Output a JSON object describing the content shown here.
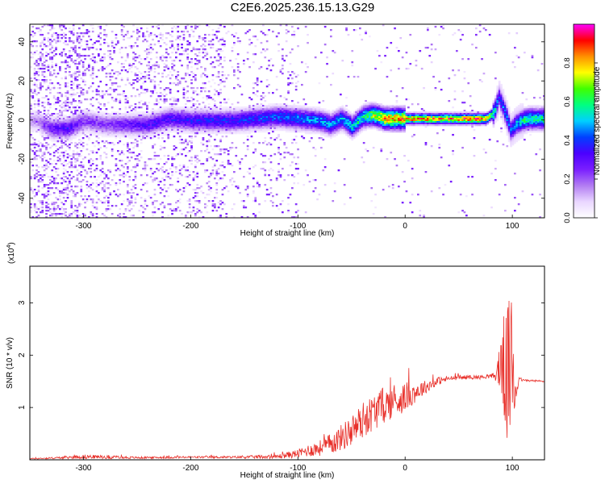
{
  "figure": {
    "title": "C2E6.2025.236.15.13.G29"
  },
  "colors": {
    "background": "#ffffff",
    "frame": "#000000",
    "snr_line": "#e8302a",
    "colormap": [
      "#ffffff",
      "#e9d6ff",
      "#b27cf2",
      "#7a1fff",
      "#4b00ff",
      "#0040ff",
      "#00d0ff",
      "#00ff80",
      "#40ff00",
      "#ffff00",
      "#ff9000",
      "#ff0000",
      "#ff00ff"
    ]
  },
  "chart_data": [
    {
      "type": "heatmap",
      "title": "C2E6.2025.236.15.13.G29",
      "xlabel": "Height of straight line (km)",
      "ylabel": "Frequency (Hz)",
      "xlim": [
        -350,
        130
      ],
      "ylim": [
        -50,
        49
      ],
      "x_ticks": [
        -300,
        -200,
        -100,
        0,
        100
      ],
      "x_tick_labels": [
        "-300",
        "-200",
        "-100",
        "0",
        "100"
      ],
      "y_ticks": [
        -40,
        -20,
        0,
        20,
        40
      ],
      "y_tick_labels": [
        "-40",
        "-20",
        "0",
        "20",
        "40"
      ],
      "colorbar": {
        "label": "Normalized spectral amplitude",
        "range": [
          0,
          1
        ],
        "ticks": [
          0.0,
          0.2,
          0.4,
          0.6,
          0.8
        ],
        "tick_labels": [
          "0.0",
          "0.2",
          "0.4",
          "0.6",
          "0.8"
        ]
      },
      "colormap": "rainbow (white-purple-blue-cyan-green-yellow-red-magenta)",
      "ridge": {
        "x": [
          -345,
          -330,
          -315,
          -300,
          -280,
          -260,
          -240,
          -220,
          -200,
          -180,
          -160,
          -140,
          -120,
          -100,
          -80,
          -70,
          -60,
          -50,
          -40,
          -30,
          -20,
          0,
          20,
          40,
          60,
          75,
          82,
          87,
          90,
          94,
          98,
          102,
          108,
          115,
          125,
          130
        ],
        "y": [
          0,
          -4,
          -4,
          0,
          -2,
          -2,
          -2,
          1,
          0,
          0,
          0,
          1,
          2,
          1,
          0,
          -2,
          1,
          -3,
          2,
          3,
          1,
          1,
          1,
          1,
          1,
          1,
          4,
          12,
          8,
          2,
          -5,
          -2,
          0,
          1,
          1,
          1
        ],
        "amplitude": [
          0.15,
          0.3,
          0.35,
          0.25,
          0.25,
          0.3,
          0.35,
          0.35,
          0.38,
          0.4,
          0.4,
          0.42,
          0.45,
          0.48,
          0.5,
          0.5,
          0.5,
          0.55,
          0.6,
          0.75,
          0.85,
          0.9,
          0.88,
          0.9,
          0.92,
          0.88,
          0.6,
          0.4,
          0.45,
          0.5,
          0.45,
          0.5,
          0.6,
          0.6,
          0.6,
          0.6
        ]
      },
      "grid": false
    },
    {
      "type": "line",
      "xlabel": "Height of straight line (km)",
      "ylabel": "SNR (10 * v/v)",
      "y_multiplier": "(x10^4)",
      "xlim": [
        -350,
        130
      ],
      "ylim": [
        0,
        3.7
      ],
      "x_ticks": [
        -300,
        -200,
        -100,
        0,
        100
      ],
      "x_tick_labels": [
        "-300",
        "-200",
        "-100",
        "0",
        "100"
      ],
      "y_ticks": [
        1,
        2,
        3
      ],
      "y_tick_labels": [
        "1",
        "2",
        "3"
      ],
      "series": [
        {
          "x": [
            -350,
            -320,
            -300,
            -250,
            -200,
            -160,
            -120,
            -100,
            -90,
            -80,
            -70,
            -60,
            -50,
            -40,
            -30,
            -20,
            -10,
            0,
            10,
            20,
            30,
            40,
            50,
            60,
            70,
            80,
            85,
            90,
            95,
            100,
            103,
            106,
            110,
            120,
            130
          ],
          "y": [
            0.02,
            0.04,
            0.06,
            0.04,
            0.05,
            0.05,
            0.06,
            0.12,
            0.18,
            0.22,
            0.3,
            0.42,
            0.55,
            0.75,
            0.9,
            1.05,
            1.1,
            1.2,
            1.3,
            1.4,
            1.5,
            1.55,
            1.57,
            1.58,
            1.58,
            1.6,
            1.6,
            1.9,
            1.6,
            1.8,
            1.3,
            1.55,
            1.52,
            1.51,
            1.5
          ],
          "noise": [
            0.01,
            0.02,
            0.04,
            0.02,
            0.02,
            0.02,
            0.04,
            0.08,
            0.12,
            0.15,
            0.2,
            0.25,
            0.3,
            0.35,
            0.35,
            0.35,
            0.3,
            0.28,
            0.2,
            0.12,
            0.08,
            0.05,
            0.04,
            0.04,
            0.04,
            0.04,
            0.1,
            0.8,
            1.3,
            1.5,
            0.4,
            0.05,
            0.02,
            0.02,
            0.02
          ]
        }
      ],
      "grid": false
    }
  ]
}
